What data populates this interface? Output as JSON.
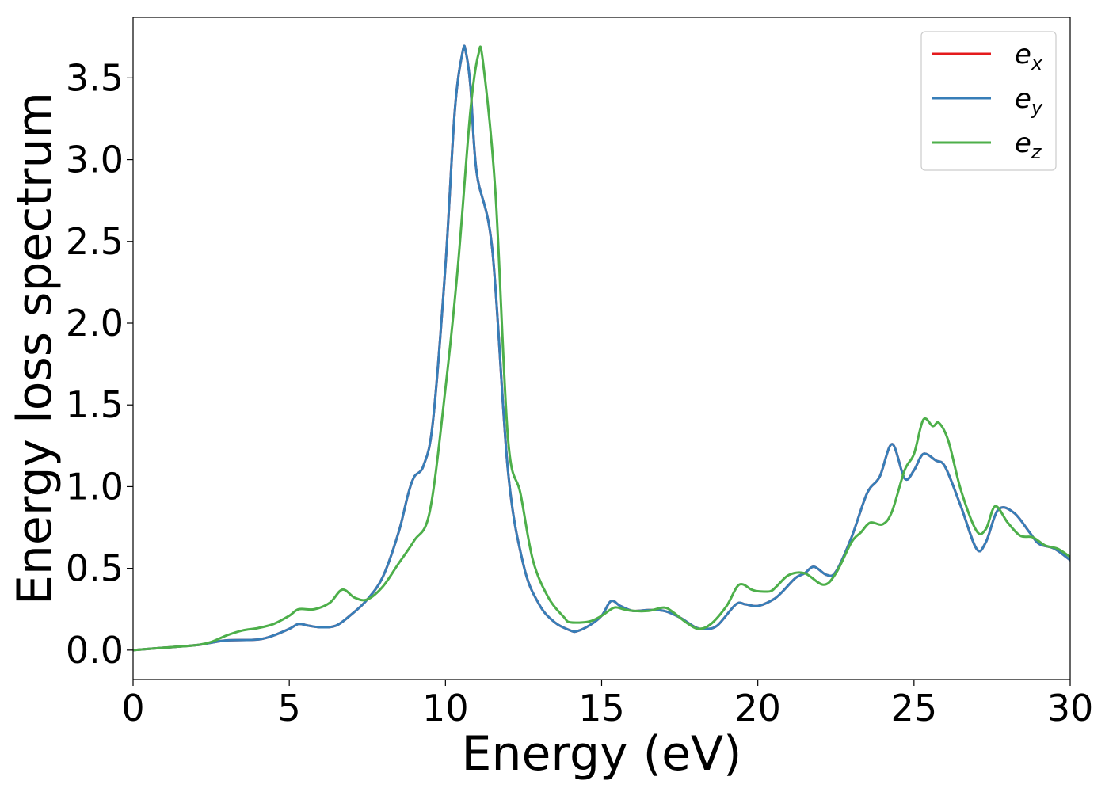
{
  "chart_data": {
    "type": "line",
    "xlabel": "Energy (eV)",
    "ylabel": "Energy loss spectrum",
    "xlim": [
      0,
      30
    ],
    "ylim": [
      -0.18,
      3.87
    ],
    "x_ticks": [
      0,
      5,
      10,
      15,
      20,
      25,
      30
    ],
    "x_tick_labels": [
      "0",
      "5",
      "10",
      "15",
      "20",
      "25",
      "30"
    ],
    "y_ticks": [
      0.0,
      0.5,
      1.0,
      1.5,
      2.0,
      2.5,
      3.0,
      3.5
    ],
    "y_tick_labels": [
      "0.0",
      "0.5",
      "1.0",
      "1.5",
      "2.0",
      "2.5",
      "3.0",
      "3.5"
    ],
    "grid": false,
    "legend_position": "top-right",
    "series": [
      {
        "name": "e_x",
        "legend_base": "e",
        "legend_sub": "x",
        "color": "#e41a1c",
        "points": [
          [
            0,
            0
          ],
          [
            1,
            0.015
          ],
          [
            2,
            0.03
          ],
          [
            2.5,
            0.045
          ],
          [
            3,
            0.06
          ],
          [
            4,
            0.065
          ],
          [
            4.5,
            0.09
          ],
          [
            5,
            0.13
          ],
          [
            5.3,
            0.16
          ],
          [
            5.6,
            0.15
          ],
          [
            6,
            0.14
          ],
          [
            6.5,
            0.15
          ],
          [
            7,
            0.22
          ],
          [
            7.5,
            0.31
          ],
          [
            8,
            0.45
          ],
          [
            8.5,
            0.72
          ],
          [
            8.8,
            0.95
          ],
          [
            9,
            1.06
          ],
          [
            9.3,
            1.13
          ],
          [
            9.6,
            1.4
          ],
          [
            10,
            2.35
          ],
          [
            10.3,
            3.3
          ],
          [
            10.55,
            3.66
          ],
          [
            10.65,
            3.66
          ],
          [
            10.8,
            3.45
          ],
          [
            11,
            2.92
          ],
          [
            11.5,
            2.45
          ],
          [
            12,
            1.1
          ],
          [
            12.5,
            0.52
          ],
          [
            13,
            0.28
          ],
          [
            13.5,
            0.17
          ],
          [
            14,
            0.12
          ],
          [
            14.2,
            0.115
          ],
          [
            14.6,
            0.15
          ],
          [
            15,
            0.21
          ],
          [
            15.3,
            0.3
          ],
          [
            15.6,
            0.27
          ],
          [
            16,
            0.24
          ],
          [
            16.5,
            0.245
          ],
          [
            17,
            0.24
          ],
          [
            17.5,
            0.2
          ],
          [
            18,
            0.14
          ],
          [
            18.3,
            0.13
          ],
          [
            18.7,
            0.15
          ],
          [
            19.3,
            0.28
          ],
          [
            19.6,
            0.28
          ],
          [
            20,
            0.27
          ],
          [
            20.5,
            0.31
          ],
          [
            20.8,
            0.36
          ],
          [
            21.2,
            0.44
          ],
          [
            21.5,
            0.47
          ],
          [
            21.8,
            0.51
          ],
          [
            22.2,
            0.46
          ],
          [
            22.5,
            0.48
          ],
          [
            23,
            0.69
          ],
          [
            23.5,
            0.96
          ],
          [
            23.9,
            1.06
          ],
          [
            24.3,
            1.26
          ],
          [
            24.7,
            1.05
          ],
          [
            25,
            1.1
          ],
          [
            25.3,
            1.2
          ],
          [
            25.7,
            1.16
          ],
          [
            26,
            1.12
          ],
          [
            26.5,
            0.88
          ],
          [
            27,
            0.62
          ],
          [
            27.3,
            0.66
          ],
          [
            27.7,
            0.86
          ],
          [
            28.2,
            0.84
          ],
          [
            28.7,
            0.72
          ],
          [
            29,
            0.65
          ],
          [
            29.5,
            0.62
          ],
          [
            30,
            0.55
          ]
        ]
      },
      {
        "name": "e_y",
        "legend_base": "e",
        "legend_sub": "y",
        "color": "#377eb8",
        "points": [
          [
            0,
            0
          ],
          [
            1,
            0.015
          ],
          [
            2,
            0.03
          ],
          [
            2.5,
            0.045
          ],
          [
            3,
            0.06
          ],
          [
            4,
            0.065
          ],
          [
            4.5,
            0.09
          ],
          [
            5,
            0.13
          ],
          [
            5.3,
            0.16
          ],
          [
            5.6,
            0.15
          ],
          [
            6,
            0.14
          ],
          [
            6.5,
            0.15
          ],
          [
            7,
            0.22
          ],
          [
            7.5,
            0.31
          ],
          [
            8,
            0.45
          ],
          [
            8.5,
            0.72
          ],
          [
            8.8,
            0.95
          ],
          [
            9,
            1.06
          ],
          [
            9.3,
            1.13
          ],
          [
            9.6,
            1.4
          ],
          [
            10,
            2.35
          ],
          [
            10.3,
            3.3
          ],
          [
            10.55,
            3.66
          ],
          [
            10.65,
            3.66
          ],
          [
            10.8,
            3.45
          ],
          [
            11,
            2.92
          ],
          [
            11.5,
            2.45
          ],
          [
            12,
            1.1
          ],
          [
            12.5,
            0.52
          ],
          [
            13,
            0.28
          ],
          [
            13.5,
            0.17
          ],
          [
            14,
            0.12
          ],
          [
            14.2,
            0.115
          ],
          [
            14.6,
            0.15
          ],
          [
            15,
            0.21
          ],
          [
            15.3,
            0.3
          ],
          [
            15.6,
            0.27
          ],
          [
            16,
            0.24
          ],
          [
            16.5,
            0.245
          ],
          [
            17,
            0.24
          ],
          [
            17.5,
            0.2
          ],
          [
            18,
            0.14
          ],
          [
            18.3,
            0.13
          ],
          [
            18.7,
            0.15
          ],
          [
            19.3,
            0.28
          ],
          [
            19.6,
            0.28
          ],
          [
            20,
            0.27
          ],
          [
            20.5,
            0.31
          ],
          [
            20.8,
            0.36
          ],
          [
            21.2,
            0.44
          ],
          [
            21.5,
            0.47
          ],
          [
            21.8,
            0.51
          ],
          [
            22.2,
            0.46
          ],
          [
            22.5,
            0.48
          ],
          [
            23,
            0.69
          ],
          [
            23.5,
            0.96
          ],
          [
            23.9,
            1.06
          ],
          [
            24.3,
            1.26
          ],
          [
            24.7,
            1.05
          ],
          [
            25,
            1.1
          ],
          [
            25.3,
            1.2
          ],
          [
            25.7,
            1.16
          ],
          [
            26,
            1.12
          ],
          [
            26.5,
            0.88
          ],
          [
            27,
            0.62
          ],
          [
            27.3,
            0.66
          ],
          [
            27.7,
            0.86
          ],
          [
            28.2,
            0.84
          ],
          [
            28.7,
            0.72
          ],
          [
            29,
            0.65
          ],
          [
            29.5,
            0.62
          ],
          [
            30,
            0.55
          ]
        ]
      },
      {
        "name": "e_z",
        "legend_base": "e",
        "legend_sub": "z",
        "color": "#4daf4a",
        "points": [
          [
            0,
            0
          ],
          [
            1,
            0.015
          ],
          [
            2,
            0.03
          ],
          [
            2.5,
            0.05
          ],
          [
            3,
            0.09
          ],
          [
            3.5,
            0.12
          ],
          [
            4,
            0.135
          ],
          [
            4.5,
            0.16
          ],
          [
            5,
            0.21
          ],
          [
            5.3,
            0.25
          ],
          [
            5.8,
            0.25
          ],
          [
            6.3,
            0.29
          ],
          [
            6.7,
            0.37
          ],
          [
            7.1,
            0.32
          ],
          [
            7.5,
            0.31
          ],
          [
            8,
            0.39
          ],
          [
            8.5,
            0.53
          ],
          [
            9,
            0.67
          ],
          [
            9.5,
            0.85
          ],
          [
            10,
            1.6
          ],
          [
            10.4,
            2.35
          ],
          [
            10.8,
            3.3
          ],
          [
            11.05,
            3.64
          ],
          [
            11.2,
            3.6
          ],
          [
            11.6,
            2.8
          ],
          [
            12,
            1.3
          ],
          [
            12.4,
            0.96
          ],
          [
            12.8,
            0.55
          ],
          [
            13.3,
            0.32
          ],
          [
            13.8,
            0.2
          ],
          [
            14,
            0.17
          ],
          [
            14.6,
            0.175
          ],
          [
            15,
            0.21
          ],
          [
            15.4,
            0.26
          ],
          [
            15.7,
            0.25
          ],
          [
            16,
            0.24
          ],
          [
            16.5,
            0.24
          ],
          [
            17,
            0.26
          ],
          [
            17.3,
            0.23
          ],
          [
            17.7,
            0.17
          ],
          [
            18.1,
            0.13
          ],
          [
            18.5,
            0.16
          ],
          [
            19,
            0.27
          ],
          [
            19.4,
            0.4
          ],
          [
            19.8,
            0.37
          ],
          [
            20,
            0.36
          ],
          [
            20.4,
            0.36
          ],
          [
            20.6,
            0.39
          ],
          [
            21,
            0.46
          ],
          [
            21.5,
            0.47
          ],
          [
            22.1,
            0.4
          ],
          [
            22.5,
            0.47
          ],
          [
            23,
            0.66
          ],
          [
            23.3,
            0.72
          ],
          [
            23.6,
            0.78
          ],
          [
            24,
            0.77
          ],
          [
            24.3,
            0.85
          ],
          [
            24.7,
            1.1
          ],
          [
            25,
            1.2
          ],
          [
            25.3,
            1.41
          ],
          [
            25.6,
            1.37
          ],
          [
            25.8,
            1.39
          ],
          [
            26.1,
            1.28
          ],
          [
            26.5,
            0.98
          ],
          [
            27,
            0.73
          ],
          [
            27.3,
            0.74
          ],
          [
            27.6,
            0.88
          ],
          [
            28,
            0.78
          ],
          [
            28.4,
            0.7
          ],
          [
            28.8,
            0.69
          ],
          [
            29.2,
            0.64
          ],
          [
            29.6,
            0.62
          ],
          [
            30,
            0.57
          ]
        ]
      }
    ]
  }
}
